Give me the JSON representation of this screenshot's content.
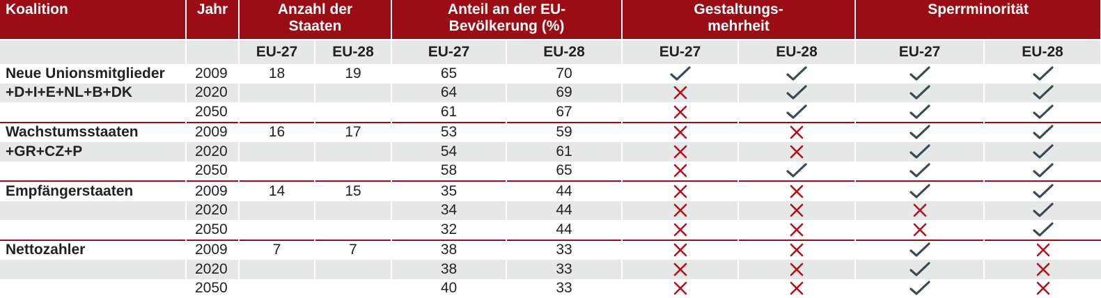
{
  "header": {
    "koalition": "Koalition",
    "jahr": "Jahr",
    "anzahl": "Anzahl der Staaten",
    "anteil": "Anteil an der EU-Bevölkerung (%)",
    "gestaltung": "Gestaltungs-mehrheit",
    "sperr": "Sperrminorität",
    "eu27": "EU-27",
    "eu28": "EU-28"
  },
  "icons": {
    "yes": "check-icon",
    "no": "cross-icon",
    "check_color": "#3a4a55",
    "cross_color": "#b0121b"
  },
  "rows": [
    {
      "koalition": "Neue Unionsmitglieder",
      "jahr": "2009",
      "n27": "18",
      "n28": "19",
      "p27": "65",
      "p28": "70",
      "g27": "yes",
      "g28": "yes",
      "s27": "yes",
      "s28": "yes"
    },
    {
      "koalition": "+D+I+E+NL+B+DK",
      "jahr": "2020",
      "n27": "",
      "n28": "",
      "p27": "64",
      "p28": "69",
      "g27": "no",
      "g28": "yes",
      "s27": "yes",
      "s28": "yes"
    },
    {
      "koalition": "",
      "jahr": "2050",
      "n27": "",
      "n28": "",
      "p27": "61",
      "p28": "67",
      "g27": "no",
      "g28": "yes",
      "s27": "yes",
      "s28": "yes"
    },
    {
      "koalition": "Wachstumsstaaten",
      "jahr": "2009",
      "n27": "16",
      "n28": "17",
      "p27": "53",
      "p28": "59",
      "g27": "no",
      "g28": "no",
      "s27": "yes",
      "s28": "yes"
    },
    {
      "koalition": "+GR+CZ+P",
      "jahr": "2020",
      "n27": "",
      "n28": "",
      "p27": "54",
      "p28": "61",
      "g27": "no",
      "g28": "no",
      "s27": "yes",
      "s28": "yes"
    },
    {
      "koalition": "",
      "jahr": "2050",
      "n27": "",
      "n28": "",
      "p27": "58",
      "p28": "65",
      "g27": "no",
      "g28": "yes",
      "s27": "yes",
      "s28": "yes"
    },
    {
      "koalition": "Empfängerstaaten",
      "jahr": "2009",
      "n27": "14",
      "n28": "15",
      "p27": "35",
      "p28": "44",
      "g27": "no",
      "g28": "no",
      "s27": "yes",
      "s28": "yes"
    },
    {
      "koalition": "",
      "jahr": "2020",
      "n27": "",
      "n28": "",
      "p27": "34",
      "p28": "44",
      "g27": "no",
      "g28": "no",
      "s27": "no",
      "s28": "yes"
    },
    {
      "koalition": "",
      "jahr": "2050",
      "n27": "",
      "n28": "",
      "p27": "32",
      "p28": "44",
      "g27": "no",
      "g28": "no",
      "s27": "no",
      "s28": "yes"
    },
    {
      "koalition": "Nettozahler",
      "jahr": "2009",
      "n27": "7",
      "n28": "7",
      "p27": "38",
      "p28": "33",
      "g27": "no",
      "g28": "no",
      "s27": "yes",
      "s28": "no"
    },
    {
      "koalition": "",
      "jahr": "2020",
      "n27": "",
      "n28": "",
      "p27": "38",
      "p28": "33",
      "g27": "no",
      "g28": "no",
      "s27": "yes",
      "s28": "no"
    },
    {
      "koalition": "",
      "jahr": "2050",
      "n27": "",
      "n28": "",
      "p27": "40",
      "p28": "33",
      "g27": "no",
      "g28": "no",
      "s27": "yes",
      "s28": "no"
    }
  ]
}
